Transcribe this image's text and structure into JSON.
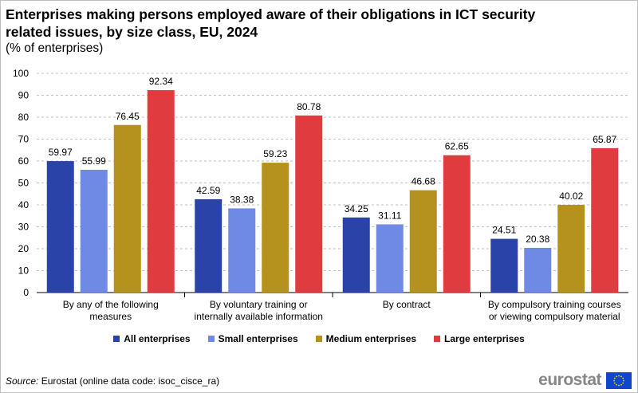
{
  "title": "Enterprises making persons employed aware of their obligations in ICT security related issues, by size class, EU, 2024",
  "subtitle": "(% of enterprises)",
  "chart_data": {
    "type": "bar",
    "title": "Enterprises making persons employed aware of their obligations in ICT security related issues, by size class, EU, 2024",
    "subtitle": "(% of enterprises)",
    "categories": [
      [
        "By any of the following",
        "measures"
      ],
      [
        "By voluntary training or",
        "internally available information"
      ],
      [
        "By contract"
      ],
      [
        "By compulsory training courses",
        "or viewing compulsory material"
      ]
    ],
    "series": [
      {
        "name": "All enterprises",
        "color": "#2a43a8",
        "values": [
          59.97,
          42.59,
          34.25,
          24.51
        ]
      },
      {
        "name": "Small enterprises",
        "color": "#6f8ae4",
        "values": [
          55.99,
          38.38,
          31.11,
          20.38
        ]
      },
      {
        "name": "Medium enterprises",
        "color": "#b5921e",
        "values": [
          76.45,
          59.23,
          46.68,
          40.02
        ]
      },
      {
        "name": "Large enterprises",
        "color": "#e03c3f",
        "values": [
          92.34,
          80.78,
          62.65,
          65.87
        ]
      }
    ],
    "ylim": [
      0,
      100
    ],
    "yticks": [
      0,
      10,
      20,
      30,
      40,
      50,
      60,
      70,
      80,
      90,
      100
    ],
    "grid": true,
    "legend_position": "bottom",
    "xlabel": "",
    "ylabel": ""
  },
  "source": {
    "label": "Source:",
    "text": " Eurostat (online data code: isoc_cisce_ra)"
  },
  "logo": {
    "text": "eurostat"
  }
}
